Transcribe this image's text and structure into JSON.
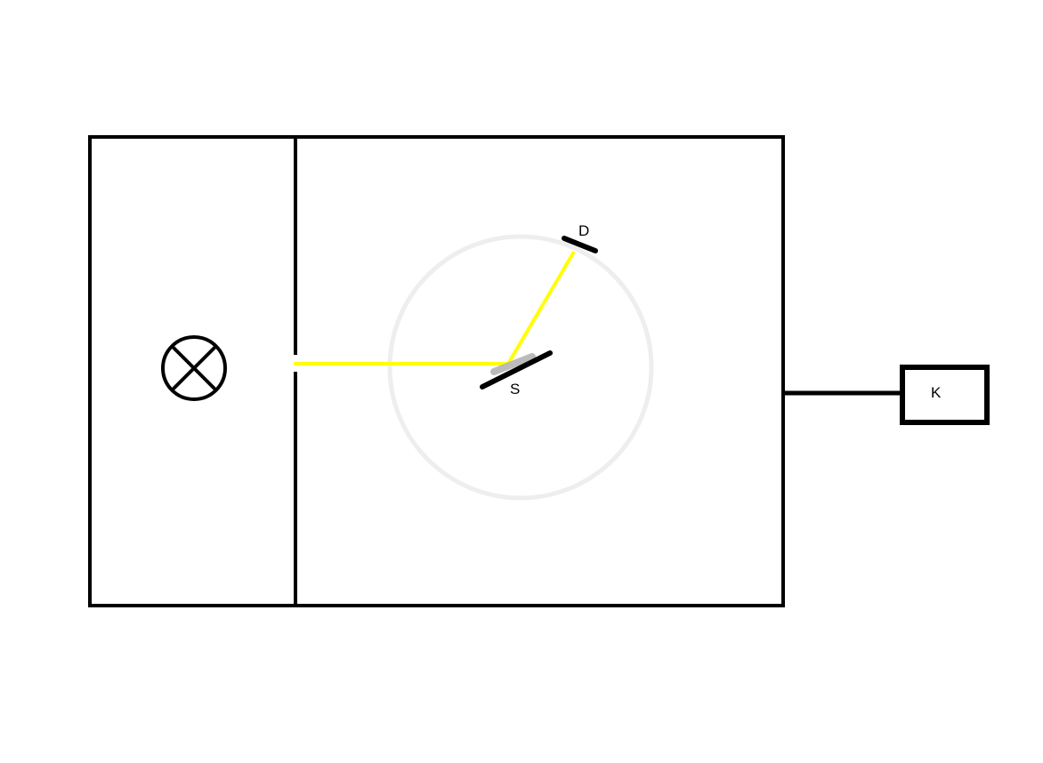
{
  "labels": {
    "detector": "D",
    "sample": "S",
    "control_box": "K"
  },
  "components": {
    "lamp": "x-lamp-icon",
    "beam_color": "#ffff00",
    "circle_color": "#eeeeee",
    "line_color": "#000000",
    "sample_shadow_color": "#bbbbbb"
  }
}
